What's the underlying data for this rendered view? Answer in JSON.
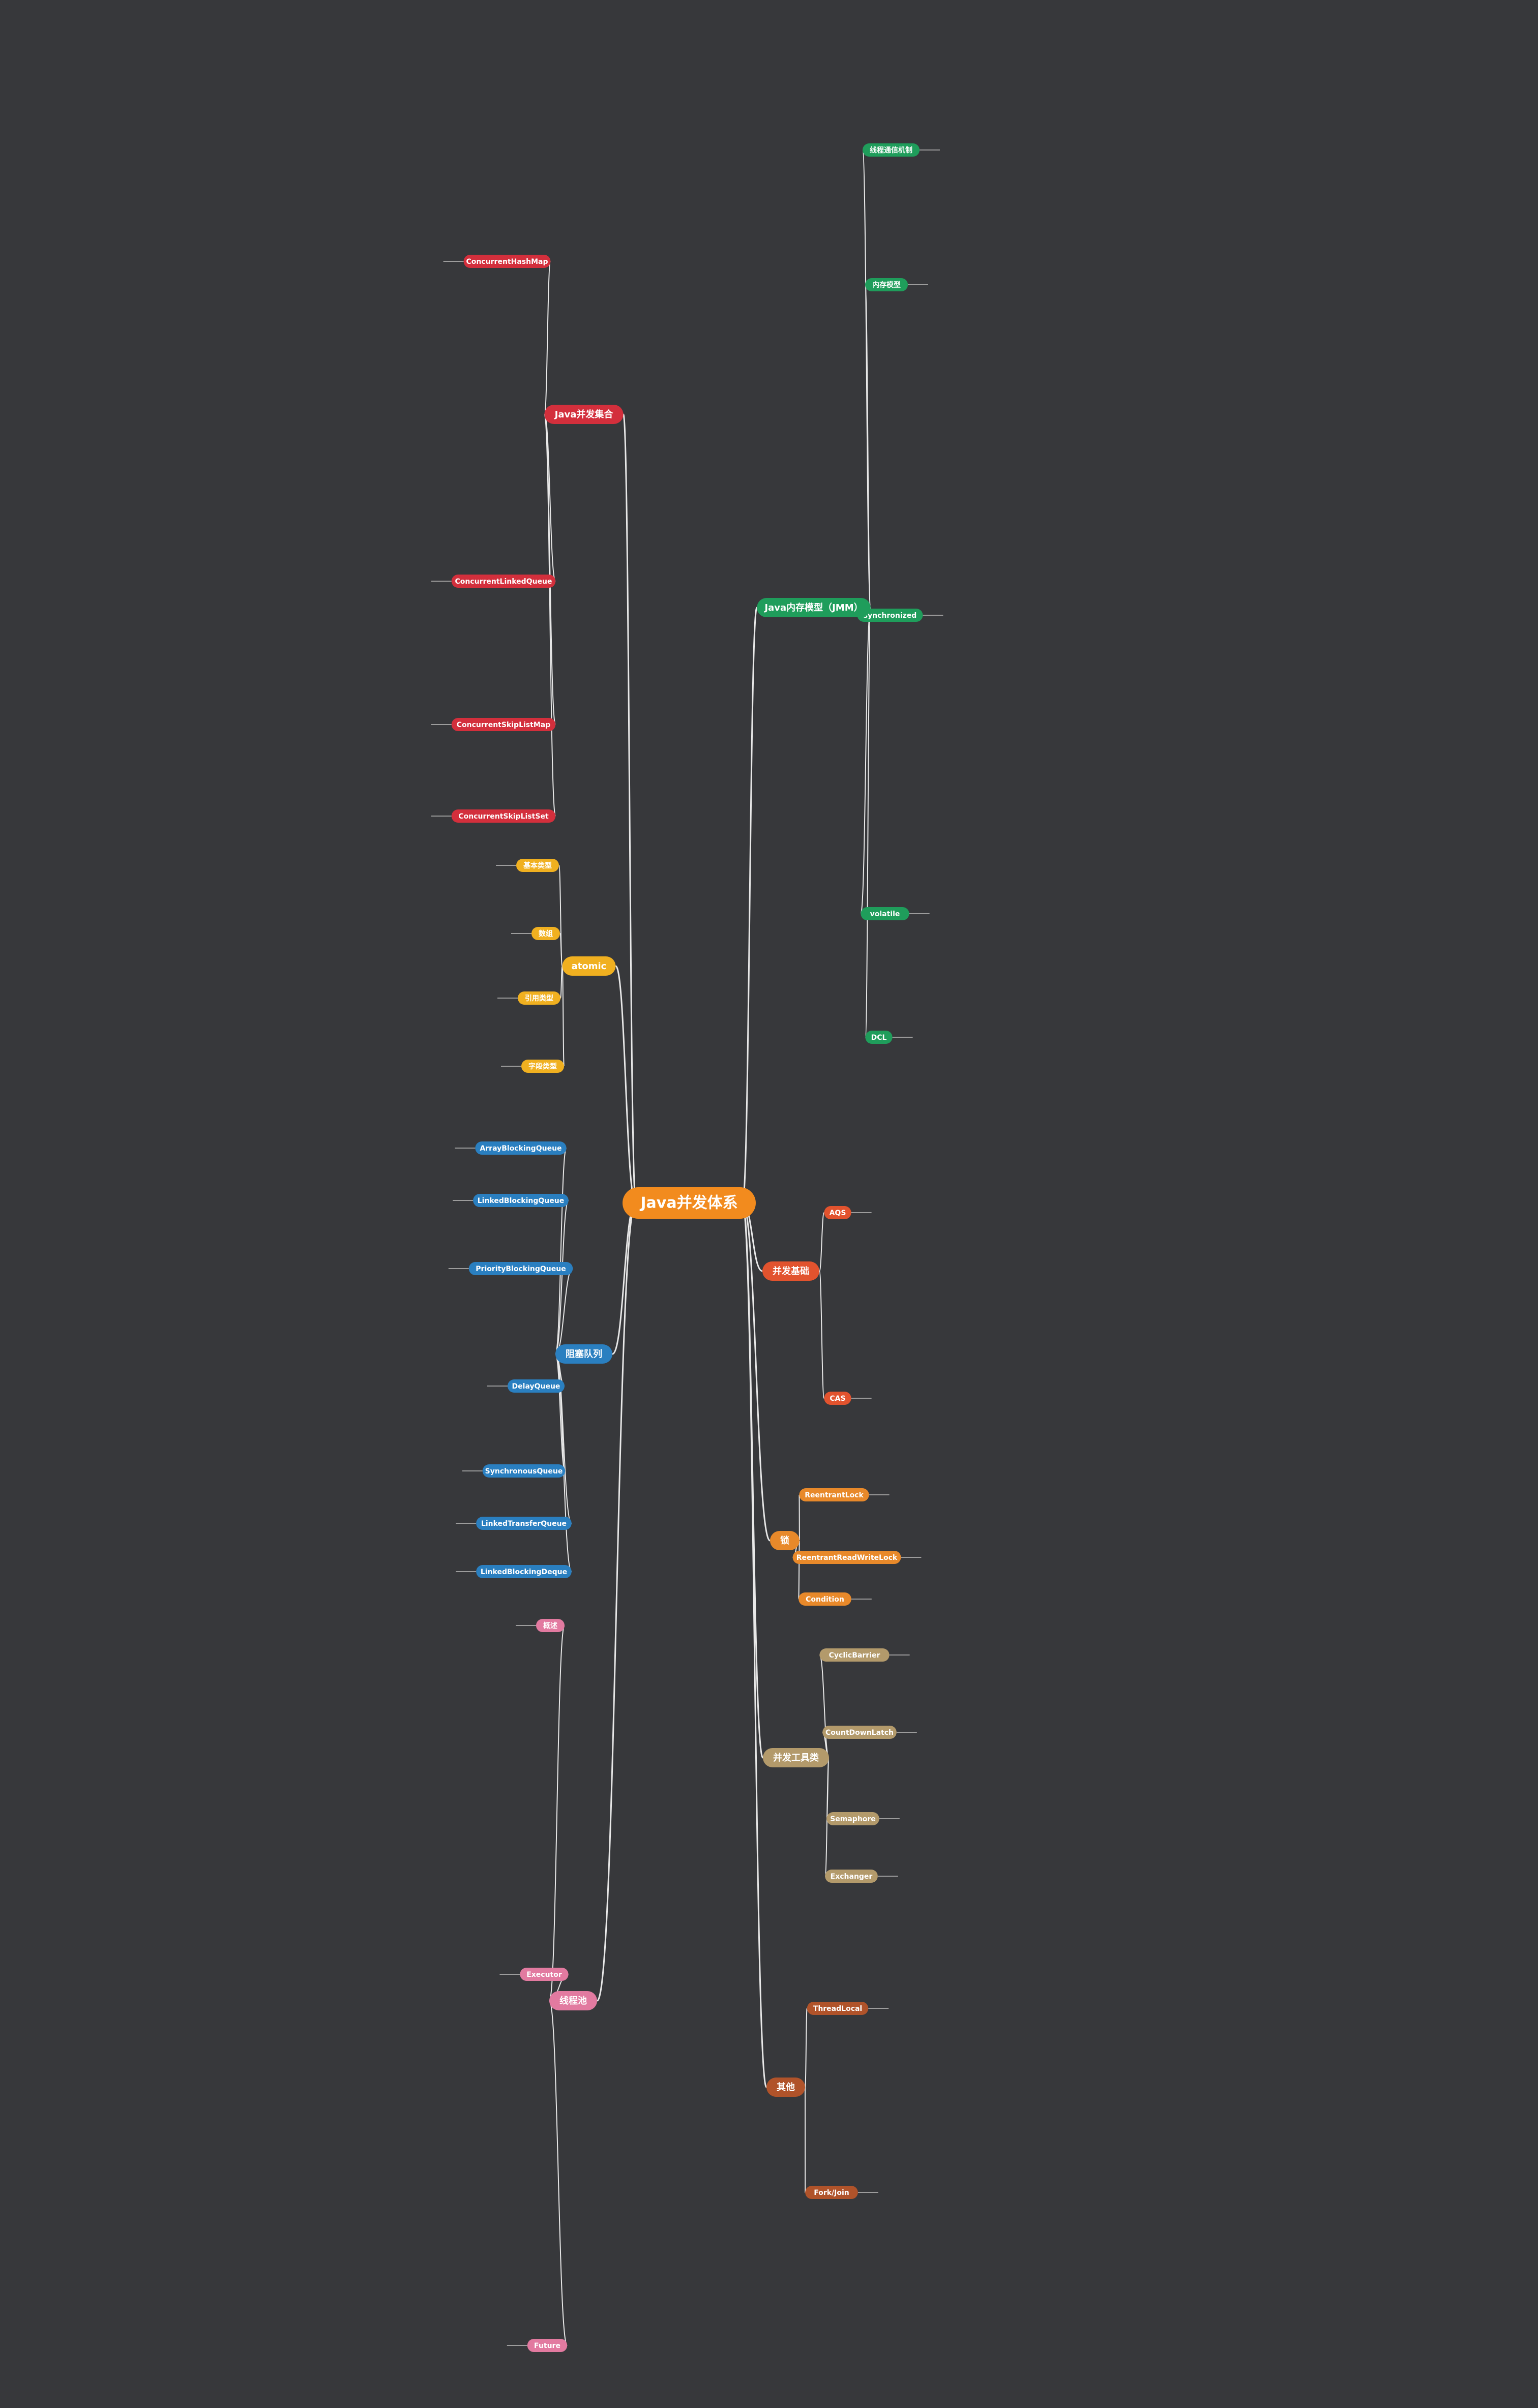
{
  "title": "Java并发体系",
  "branches": [
    {
      "label": "Java内存模型（JMM）",
      "color": "#1f9d5b",
      "side": "right",
      "children": [
        "线程通信机制",
        "内存模型",
        "synchronized",
        "volatile",
        "DCL"
      ]
    },
    {
      "label": "并发基础",
      "color": "#e2532e",
      "side": "right",
      "children": [
        "AQS",
        "CAS"
      ]
    },
    {
      "label": "锁",
      "color": "#e8892a",
      "side": "right",
      "children": [
        "ReentrantLock",
        "ReentrantReadWriteLock",
        "Condition"
      ]
    },
    {
      "label": "并发工具类",
      "color": "#b39a6b",
      "side": "right",
      "children": [
        "CyclicBarrier",
        "CountDownLatch",
        "Semaphore",
        "Exchanger"
      ]
    },
    {
      "label": "其他",
      "color": "#b0532a",
      "side": "right",
      "children": [
        "ThreadLocal",
        "Fork/Join"
      ]
    },
    {
      "label": "Java并发集合",
      "color": "#d32f3c",
      "side": "left",
      "children": [
        "ConcurrentHashMap",
        "ConcurrentLinkedQueue",
        "ConcurrentSkipListMap",
        "ConcurrentSkipListSet"
      ]
    },
    {
      "label": "atomic",
      "color": "#f0b020",
      "side": "left",
      "children": [
        "基本类型",
        "数组",
        "引用类型",
        "字段类型"
      ]
    },
    {
      "label": "阻塞队列",
      "color": "#2a7fc0",
      "side": "left",
      "children": [
        "ArrayBlockingQueue",
        "LinkedBlockingQueue",
        "PriorityBlockingQueue",
        "DelayQueue",
        "SynchronousQueue",
        "LinkedTransferQueue",
        "LinkedBlockingDeque"
      ]
    },
    {
      "label": "线程池",
      "color": "#e27aa0",
      "side": "left",
      "children": [
        "概述",
        "Executor",
        "Future"
      ]
    }
  ]
}
